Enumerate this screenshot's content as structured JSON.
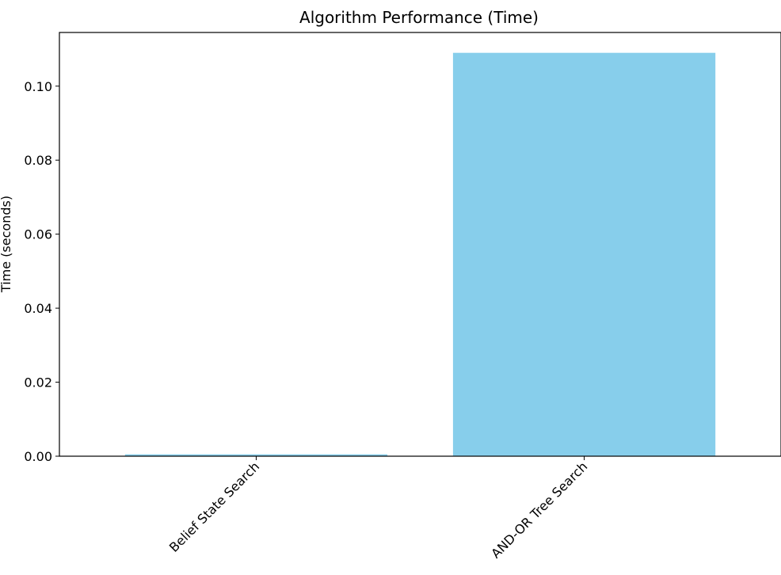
{
  "chart_data": {
    "type": "bar",
    "title": "Algorithm Performance (Time)",
    "xlabel": "",
    "ylabel": "Time (seconds)",
    "categories": [
      "Belief State Search",
      "AND-OR Tree Search"
    ],
    "values": [
      0.0005,
      0.109
    ],
    "ylim": [
      0,
      0.1145
    ],
    "yticks": [
      0.0,
      0.02,
      0.04,
      0.06,
      0.08,
      0.1
    ],
    "ytick_labels": [
      "0.00",
      "0.02",
      "0.04",
      "0.06",
      "0.08",
      "0.10"
    ],
    "bar_color": "#87CEEB",
    "xtick_rotation_deg": -45,
    "grid": false,
    "legend": "none"
  }
}
